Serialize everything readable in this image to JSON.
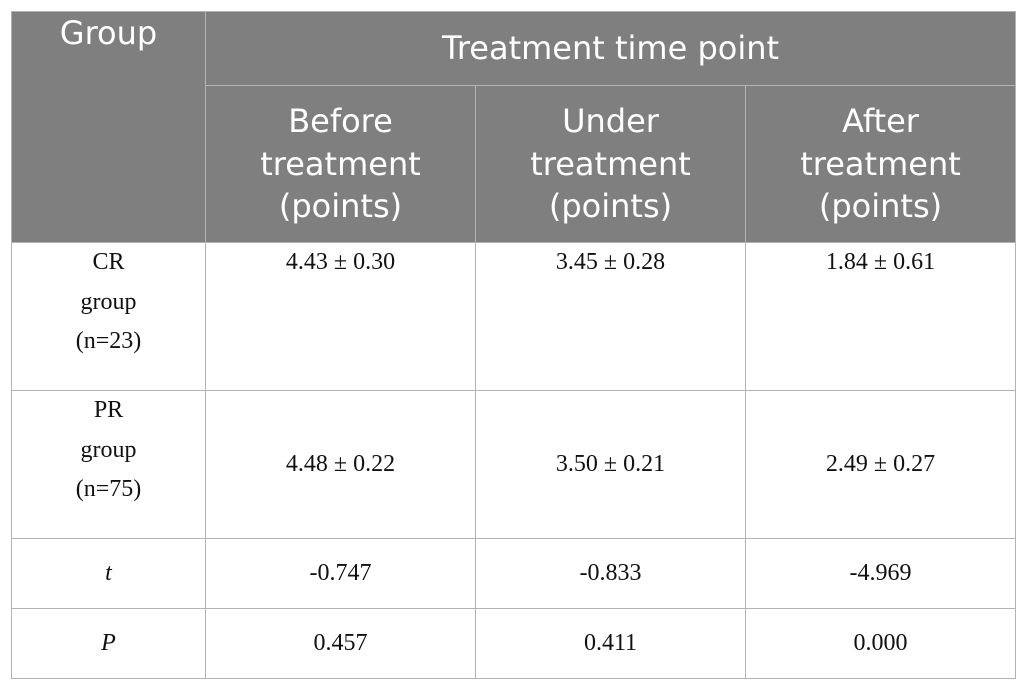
{
  "table": {
    "header": {
      "group": "Group",
      "time_point": "Treatment time point",
      "columns": [
        {
          "line1": "Before",
          "line2": "treatment",
          "line3": "(points)"
        },
        {
          "line1": "Under",
          "line2": "treatment",
          "line3": "(points)"
        },
        {
          "line1": "After",
          "line2": "treatment",
          "line3": "(points)"
        }
      ]
    },
    "rows": [
      {
        "label": {
          "line1": "CR",
          "line2": "group",
          "line3": "(n=23)"
        },
        "values": [
          "4.43 ± 0.30",
          "3.45 ± 0.28",
          "1.84 ± 0.61"
        ]
      },
      {
        "label": {
          "line1": "PR",
          "line2": "group",
          "line3": "(n=75)"
        },
        "values": [
          "4.48 ± 0.22",
          "3.50 ± 0.21",
          "2.49 ± 0.27"
        ]
      },
      {
        "label": "t",
        "values": [
          "-0.747",
          "-0.833",
          "-4.969"
        ]
      },
      {
        "label": "P",
        "values": [
          "0.457",
          "0.411",
          "0.000"
        ]
      }
    ]
  }
}
